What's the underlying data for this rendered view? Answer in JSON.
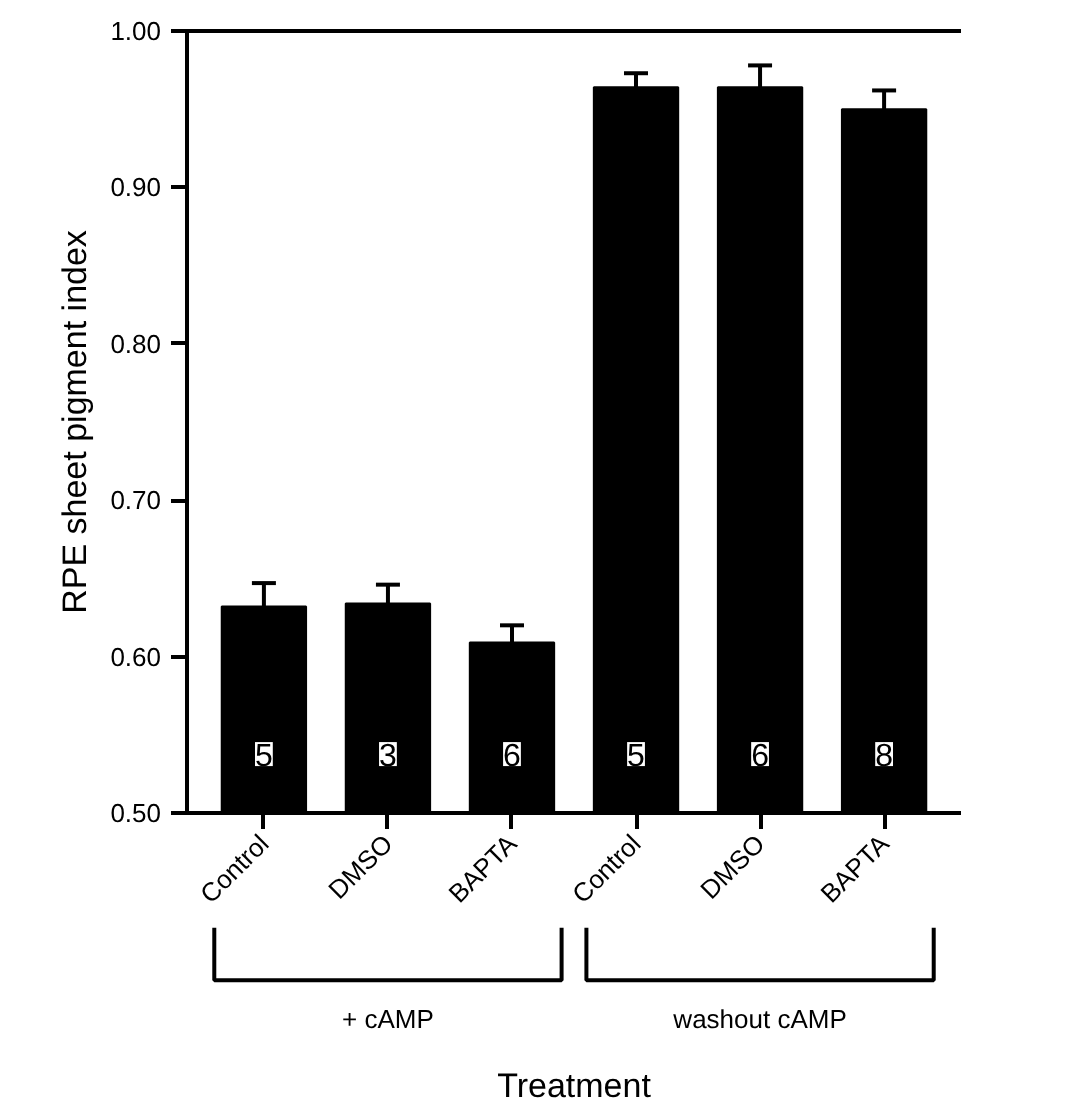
{
  "chart_data": {
    "type": "bar",
    "categories": [
      "Control",
      "DMSO",
      "BAPTA",
      "Control",
      "DMSO",
      "BAPTA"
    ],
    "values": [
      0.632,
      0.634,
      0.609,
      0.964,
      0.964,
      0.95
    ],
    "errors": [
      0.015,
      0.012,
      0.011,
      0.009,
      0.014,
      0.012
    ],
    "color": "#000000",
    "ylim": [
      0.5,
      1.0
    ],
    "yticks": [
      {
        "value": 0.5,
        "label": "0.50"
      },
      {
        "value": 0.6,
        "label": "0.60"
      },
      {
        "value": 0.7,
        "label": "0.70"
      },
      {
        "value": 0.8,
        "label": "0.80"
      },
      {
        "value": 0.9,
        "label": "0.90"
      },
      {
        "value": 1.0,
        "label": "1.00"
      }
    ],
    "ylabel": "RPE sheet pigment index",
    "xlabel": "Treatment",
    "grid": false,
    "annotations": [
      "5",
      "3",
      "6",
      "5",
      "6",
      "8",
      "+ cAMP",
      "washout cAMP"
    ]
  }
}
